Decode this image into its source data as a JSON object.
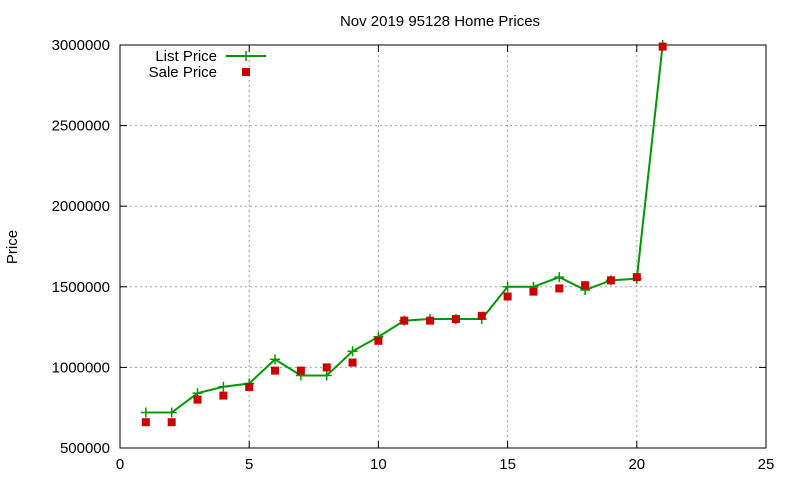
{
  "chart_data": {
    "type": "line",
    "title": "Nov 2019 95128 Home Prices",
    "xlabel": "",
    "ylabel": "Price",
    "xlim": [
      0,
      25
    ],
    "ylim": [
      500000,
      3000000
    ],
    "xticks": [
      0,
      5,
      10,
      15,
      20,
      25
    ],
    "yticks": [
      500000,
      1000000,
      1500000,
      2000000,
      2500000,
      3000000
    ],
    "grid": true,
    "legend_position": "top-left",
    "series": [
      {
        "name": "List Price",
        "kind": "line-with-plus-markers",
        "color": "#009900",
        "x": [
          1,
          2,
          3,
          4,
          5,
          6,
          7,
          8,
          9,
          10,
          11,
          12,
          13,
          14,
          15,
          16,
          17,
          18,
          19,
          20,
          21
        ],
        "y": [
          720000,
          720000,
          840000,
          880000,
          900000,
          1050000,
          950000,
          950000,
          1100000,
          1190000,
          1290000,
          1300000,
          1300000,
          1300000,
          1500000,
          1500000,
          1560000,
          1480000,
          1540000,
          1550000,
          3000000
        ]
      },
      {
        "name": "Sale Price",
        "kind": "square-markers",
        "color": "#cc0000",
        "x": [
          1,
          2,
          3,
          4,
          5,
          6,
          7,
          8,
          9,
          10,
          11,
          12,
          13,
          14,
          15,
          16,
          17,
          18,
          19,
          20,
          21
        ],
        "y": [
          660000,
          660000,
          800000,
          825000,
          878000,
          980000,
          980000,
          1000000,
          1030000,
          1165000,
          1290000,
          1290000,
          1300000,
          1320000,
          1440000,
          1470000,
          1490000,
          1510000,
          1540000,
          1560000,
          2990000
        ]
      }
    ]
  }
}
